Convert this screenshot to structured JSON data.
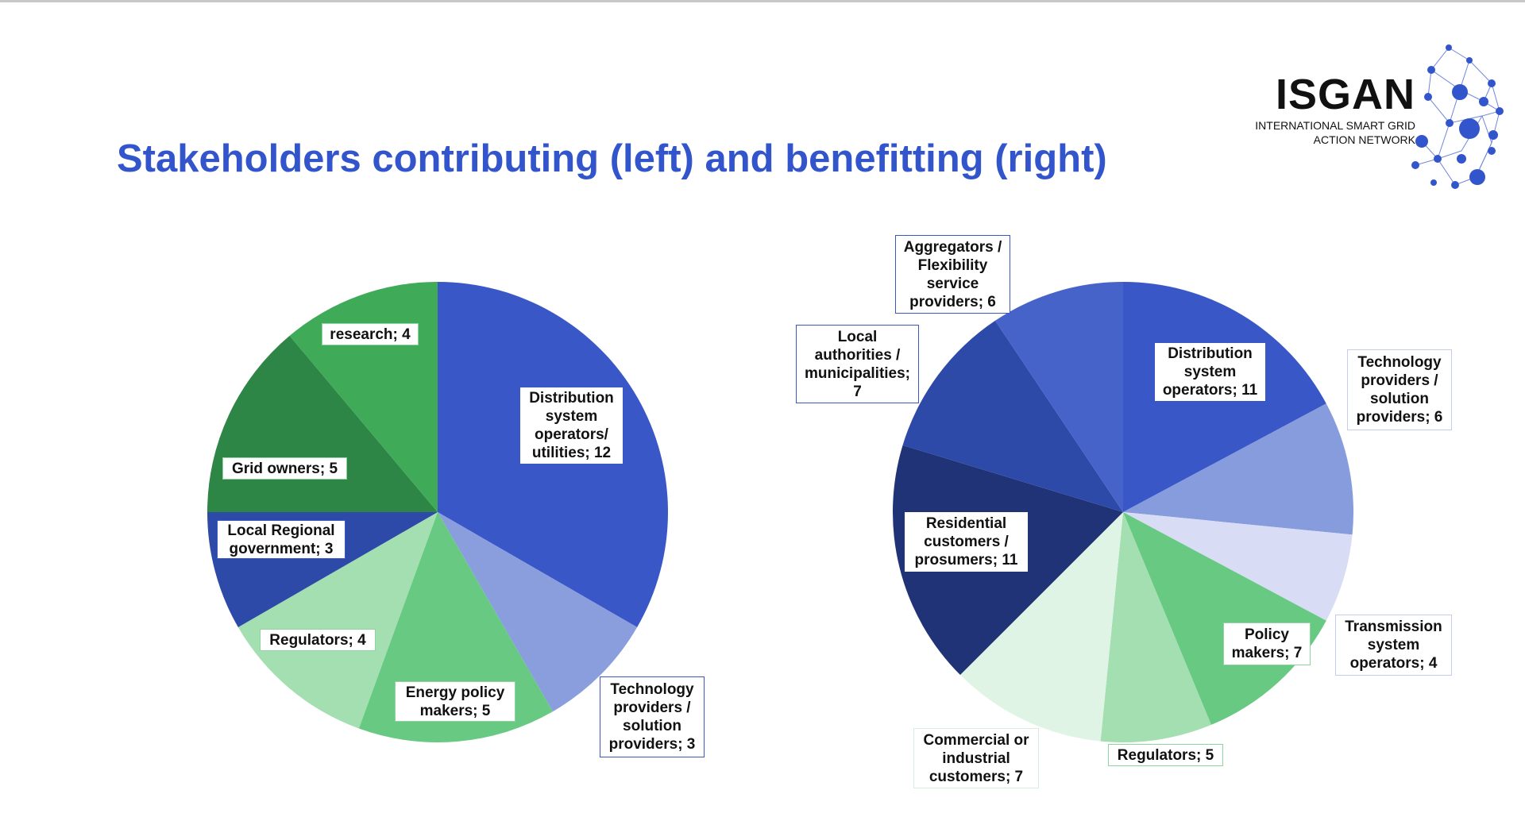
{
  "title": "Stakeholders contributing (left) and benefitting (right)",
  "logo": {
    "name": "ISGAN",
    "line1": "INTERNATIONAL SMART GRID",
    "line2": "ACTION NETWORK"
  },
  "chart_data": [
    {
      "type": "pie",
      "title": "",
      "start": "top, clockwise",
      "categories": [
        "Distribution system operators/ utilities",
        "Technology providers / solution providers",
        "Energy policy makers",
        "Regulators",
        "Local Regional government",
        "Grid owners",
        "research"
      ],
      "values": [
        12,
        3,
        5,
        4,
        3,
        5,
        4
      ],
      "colors": [
        "#3a57c8",
        "#8a9ede",
        "#68c982",
        "#a3dfb0",
        "#2e4aa8",
        "#2e8646",
        "#3faa58"
      ],
      "labels": [
        "Distribution system operators/ utilities; 12",
        "Technology providers / solution providers; 3",
        "Energy policy makers; 5",
        "Regulators; 4",
        "Local Regional government; 3",
        "Grid owners; 5",
        "research; 4"
      ]
    },
    {
      "type": "pie",
      "title": "",
      "start": "top, clockwise",
      "categories": [
        "Distribution system operators",
        "Technology providers / solution providers",
        "Transmission system operators",
        "Policy makers",
        "Regulators",
        "Commercial or industrial customers",
        "Residential customers / prosumers",
        "Local authorities / municipalities",
        "Aggregators / Flexibility service providers"
      ],
      "values": [
        11,
        6,
        4,
        7,
        5,
        7,
        11,
        7,
        6
      ],
      "colors": [
        "#3a57c8",
        "#879cdc",
        "#d8ddf5",
        "#68c982",
        "#a3dfb0",
        "#e0f4e6",
        "#213377",
        "#2d4aa8",
        "#4663c9"
      ],
      "labels": [
        "Distribution system operators; 11",
        "Technology providers / solution providers; 6",
        "Transmission system operators; 4",
        "Policy makers; 7",
        "Regulators; 5",
        "Commercial or industrial customers; 7",
        "Residential customers / prosumers; 11",
        "Local authorities / municipalities; 7",
        "Aggregators / Flexibility service providers; 6"
      ]
    }
  ]
}
